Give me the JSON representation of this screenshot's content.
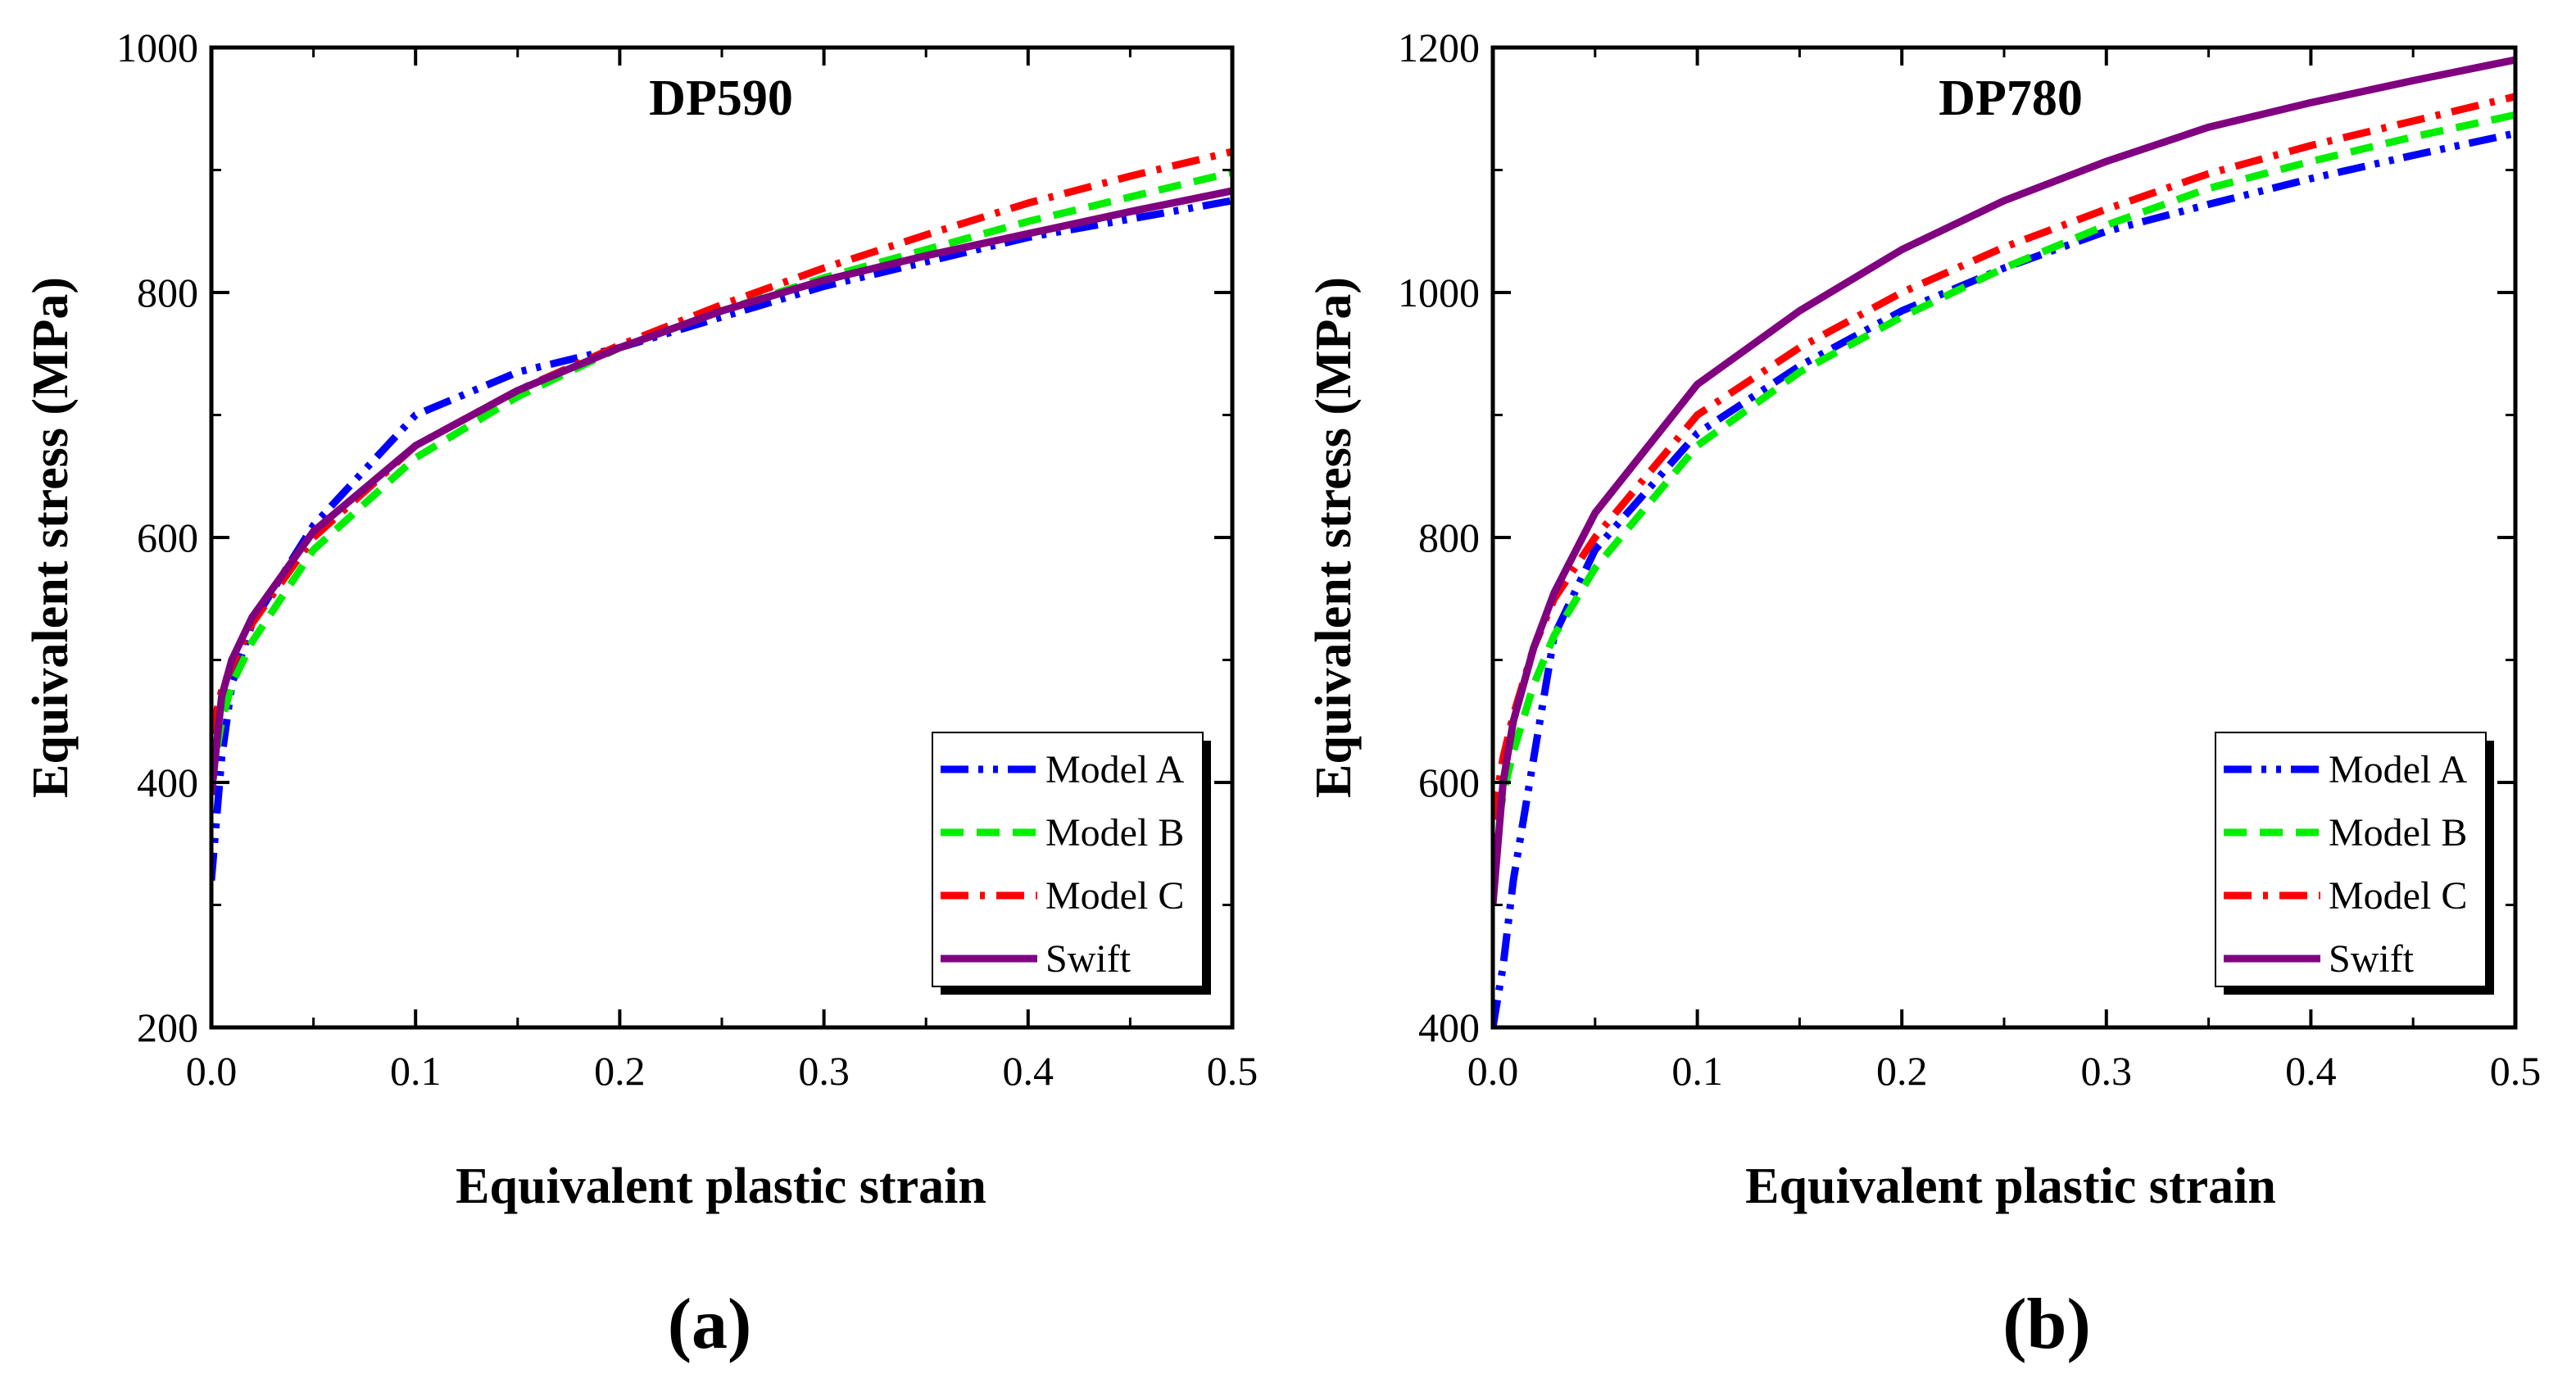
{
  "chart_data": [
    {
      "type": "line",
      "title": "DP590",
      "xlabel": "Equivalent plastic strain",
      "ylabel": "Equivalent stress (MPa)",
      "xlim": [
        0.0,
        0.5
      ],
      "ylim": [
        200,
        1000
      ],
      "xticks": [
        0.0,
        0.1,
        0.2,
        0.3,
        0.4,
        0.5
      ],
      "xtick_labels": [
        "0.0",
        "0.1",
        "0.2",
        "0.3",
        "0.4",
        "0.5"
      ],
      "yticks": [
        200,
        400,
        600,
        800,
        1000
      ],
      "ytick_labels": [
        "200",
        "400",
        "600",
        "800",
        "1000"
      ],
      "grid": false,
      "legend_position": "bottom-right",
      "panel_label": "(a)",
      "series": [
        {
          "name": "Model A",
          "color": "#0000ff",
          "dash": "dash-dot-dot",
          "x": [
            0.0,
            0.005,
            0.01,
            0.02,
            0.05,
            0.1,
            0.15,
            0.2,
            0.25,
            0.3,
            0.35,
            0.4,
            0.45,
            0.5
          ],
          "y": [
            320,
            420,
            480,
            530,
            610,
            700,
            735,
            755,
            780,
            805,
            825,
            845,
            860,
            875
          ]
        },
        {
          "name": "Model B",
          "color": "#00ee00",
          "dash": "dash",
          "x": [
            0.0,
            0.005,
            0.01,
            0.02,
            0.05,
            0.1,
            0.15,
            0.2,
            0.25,
            0.3,
            0.35,
            0.4,
            0.45,
            0.5
          ],
          "y": [
            400,
            450,
            480,
            515,
            590,
            665,
            715,
            755,
            785,
            812,
            835,
            858,
            878,
            898
          ]
        },
        {
          "name": "Model C",
          "color": "#ff0000",
          "dash": "dash-dot",
          "x": [
            0.0,
            0.005,
            0.01,
            0.02,
            0.05,
            0.1,
            0.15,
            0.2,
            0.25,
            0.3,
            0.35,
            0.4,
            0.45,
            0.5
          ],
          "y": [
            440,
            475,
            495,
            530,
            600,
            675,
            720,
            757,
            790,
            820,
            847,
            873,
            895,
            915
          ]
        },
        {
          "name": "Swift",
          "color": "#800080",
          "dash": "solid",
          "x": [
            0.0,
            0.005,
            0.01,
            0.02,
            0.05,
            0.1,
            0.15,
            0.2,
            0.25,
            0.3,
            0.35,
            0.4,
            0.45,
            0.5
          ],
          "y": [
            390,
            470,
            500,
            535,
            605,
            675,
            720,
            755,
            785,
            810,
            830,
            848,
            866,
            883
          ]
        }
      ]
    },
    {
      "type": "line",
      "title": "DP780",
      "xlabel": "Equivalent plastic strain",
      "ylabel": "Equivalent stress (MPa)",
      "xlim": [
        0.0,
        0.5
      ],
      "ylim": [
        400,
        1200
      ],
      "xticks": [
        0.0,
        0.1,
        0.2,
        0.3,
        0.4,
        0.5
      ],
      "xtick_labels": [
        "0.0",
        "0.1",
        "0.2",
        "0.3",
        "0.4",
        "0.5"
      ],
      "yticks": [
        400,
        600,
        800,
        1000,
        1200
      ],
      "ytick_labels": [
        "400",
        "600",
        "800",
        "1000",
        "1200"
      ],
      "grid": false,
      "legend_position": "bottom-right",
      "panel_label": "(b)",
      "series": [
        {
          "name": "Model A",
          "color": "#0000ff",
          "dash": "dash-dot-dot",
          "x": [
            0.0,
            0.005,
            0.01,
            0.02,
            0.03,
            0.05,
            0.1,
            0.15,
            0.2,
            0.25,
            0.3,
            0.35,
            0.4,
            0.45,
            0.5
          ],
          "y": [
            400,
            450,
            520,
            620,
            720,
            790,
            885,
            940,
            985,
            1020,
            1050,
            1072,
            1093,
            1112,
            1130
          ]
        },
        {
          "name": "Model B",
          "color": "#00ee00",
          "dash": "dash",
          "x": [
            0.0,
            0.005,
            0.01,
            0.02,
            0.03,
            0.05,
            0.1,
            0.15,
            0.2,
            0.25,
            0.3,
            0.35,
            0.4,
            0.45,
            0.5
          ],
          "y": [
            540,
            590,
            625,
            680,
            720,
            775,
            875,
            935,
            980,
            1020,
            1055,
            1085,
            1107,
            1127,
            1145
          ]
        },
        {
          "name": "Model C",
          "color": "#ff0000",
          "dash": "dash-dot",
          "x": [
            0.0,
            0.005,
            0.01,
            0.02,
            0.03,
            0.05,
            0.1,
            0.15,
            0.2,
            0.25,
            0.3,
            0.35,
            0.4,
            0.45,
            0.5
          ],
          "y": [
            570,
            620,
            655,
            710,
            750,
            800,
            900,
            955,
            1000,
            1037,
            1068,
            1097,
            1120,
            1140,
            1160
          ]
        },
        {
          "name": "Swift",
          "color": "#800080",
          "dash": "solid",
          "x": [
            0.0,
            0.005,
            0.01,
            0.02,
            0.03,
            0.05,
            0.1,
            0.15,
            0.2,
            0.25,
            0.3,
            0.35,
            0.4,
            0.45,
            0.5
          ],
          "y": [
            500,
            600,
            650,
            710,
            755,
            820,
            925,
            985,
            1035,
            1075,
            1107,
            1135,
            1155,
            1173,
            1190
          ]
        }
      ]
    }
  ]
}
